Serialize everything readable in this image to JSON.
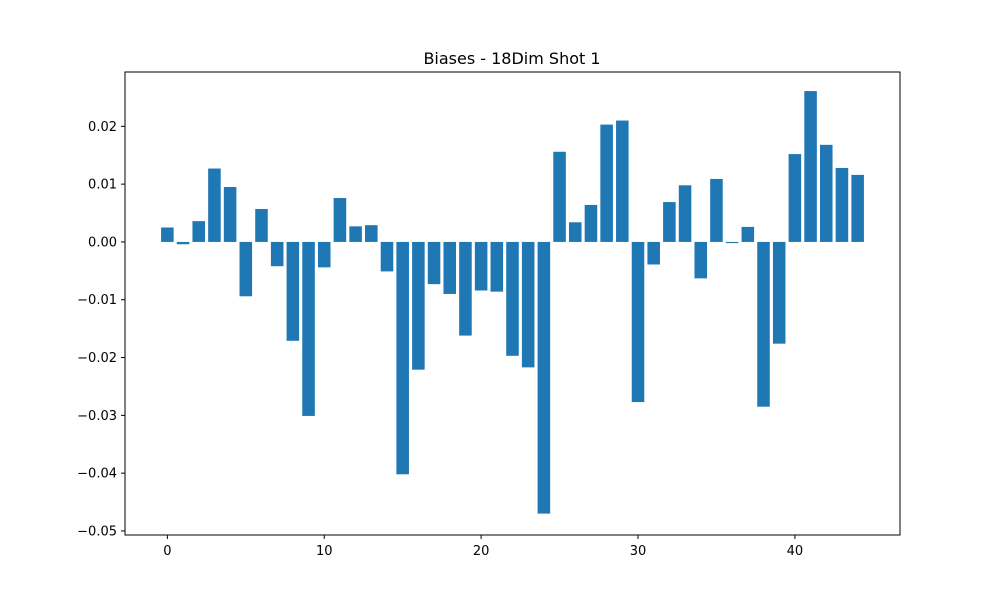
{
  "chart_data": {
    "type": "bar",
    "title": "Biases - 18Dim Shot 1",
    "xlabel": "",
    "ylabel": "",
    "bar_color": "#1f77b4",
    "x": [
      0,
      1,
      2,
      3,
      4,
      5,
      6,
      7,
      8,
      9,
      10,
      11,
      12,
      13,
      14,
      15,
      16,
      17,
      18,
      19,
      20,
      21,
      22,
      23,
      24,
      25,
      26,
      27,
      28,
      29,
      30,
      31,
      32,
      33,
      34,
      35,
      36,
      37,
      38,
      39,
      40,
      41,
      42,
      43,
      44
    ],
    "values": [
      0.0025,
      -0.0004,
      0.0036,
      0.0127,
      0.0095,
      -0.0094,
      0.0057,
      -0.0042,
      -0.0171,
      -0.0301,
      -0.0044,
      0.0076,
      0.0027,
      0.0029,
      -0.0051,
      -0.0402,
      -0.0221,
      -0.0073,
      -0.009,
      -0.0162,
      -0.0084,
      -0.0086,
      -0.0197,
      -0.0217,
      -0.047,
      0.0156,
      0.0034,
      0.0064,
      0.0203,
      0.021,
      -0.0277,
      -0.0039,
      0.0069,
      0.0098,
      -0.0063,
      0.0109,
      -0.0002,
      0.0026,
      -0.0285,
      -0.0176,
      0.0152,
      0.0261,
      0.0168,
      0.0128,
      0.0116
    ],
    "xlim": [
      -2.7,
      46.7
    ],
    "ylim": [
      -0.0507,
      0.0294
    ],
    "xticks": [
      0,
      10,
      20,
      30,
      40
    ],
    "xtick_labels": [
      "0",
      "10",
      "20",
      "30",
      "40"
    ],
    "yticks": [
      -0.05,
      -0.04,
      -0.03,
      -0.02,
      -0.01,
      0.0,
      0.01,
      0.02
    ],
    "ytick_labels": [
      "−0.05",
      "−0.04",
      "−0.03",
      "−0.02",
      "−0.01",
      "0.00",
      "0.01",
      "0.02"
    ],
    "grid": false,
    "legend": "none"
  }
}
